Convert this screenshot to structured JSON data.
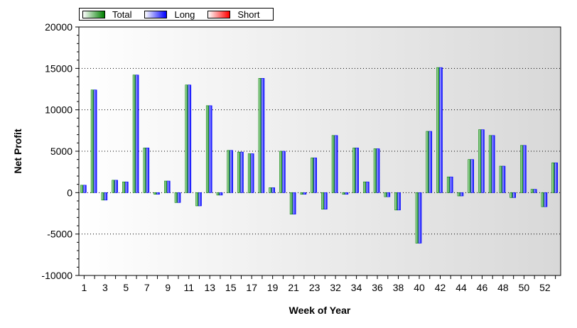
{
  "chart_data": {
    "type": "bar",
    "xlabel": "Week of Year",
    "ylabel": "Net Profit",
    "ylim": [
      -10000,
      20000
    ],
    "yticks": [
      -10000,
      -5000,
      0,
      5000,
      10000,
      15000,
      20000
    ],
    "xtick_labels": [
      "1",
      "3",
      "5",
      "7",
      "9",
      "11",
      "13",
      "15",
      "17",
      "19",
      "21",
      "23",
      "32",
      "34",
      "36",
      "38",
      "40",
      "42",
      "44",
      "46",
      "48",
      "50",
      "52"
    ],
    "legend": {
      "position": "top-left",
      "entries": [
        "Total",
        "Long",
        "Short"
      ]
    },
    "grid": "horizontal-dotted",
    "categories": [
      "1",
      "2",
      "3",
      "4",
      "5",
      "6",
      "7",
      "8",
      "9",
      "10",
      "11",
      "12",
      "13",
      "14",
      "15",
      "16",
      "17",
      "18",
      "19",
      "20",
      "21",
      "22",
      "23",
      "24",
      "32",
      "33",
      "34",
      "35",
      "36",
      "37",
      "38",
      "39",
      "40",
      "41",
      "42",
      "43",
      "44",
      "45",
      "46",
      "47",
      "48",
      "49",
      "50",
      "51",
      "52",
      "53"
    ],
    "series": [
      {
        "name": "Total",
        "color": "#008000",
        "values": [
          900,
          12400,
          -900,
          1500,
          1300,
          14200,
          5400,
          -200,
          1400,
          -1200,
          13000,
          -1600,
          10500,
          -300,
          5100,
          4900,
          4700,
          13800,
          600,
          5000,
          -2600,
          -200,
          4200,
          -2000,
          6900,
          -200,
          5400,
          1300,
          5300,
          -500,
          -2100,
          0,
          -6100,
          7400,
          15100,
          1900,
          -400,
          4000,
          7600,
          6900,
          3200,
          -600,
          5700,
          400,
          -1700,
          3600
        ]
      },
      {
        "name": "Long",
        "color": "#0000ff",
        "values": [
          900,
          12400,
          -900,
          1500,
          1300,
          14200,
          5400,
          -200,
          1400,
          -1200,
          13000,
          -1600,
          10500,
          -300,
          5100,
          4900,
          4700,
          13800,
          600,
          5000,
          -2600,
          -200,
          4200,
          -2000,
          6900,
          -200,
          5400,
          1300,
          5300,
          -500,
          -2100,
          0,
          -6100,
          7400,
          15100,
          1900,
          -400,
          4000,
          7600,
          6900,
          3200,
          -600,
          5700,
          400,
          -1700,
          3600
        ]
      },
      {
        "name": "Short",
        "color": "#ff0000",
        "values": [
          0,
          0,
          0,
          0,
          0,
          0,
          0,
          0,
          0,
          0,
          0,
          0,
          0,
          0,
          0,
          0,
          0,
          0,
          0,
          0,
          0,
          0,
          0,
          0,
          0,
          0,
          0,
          0,
          0,
          0,
          0,
          0,
          0,
          0,
          0,
          0,
          0,
          0,
          0,
          0,
          0,
          0,
          0,
          0,
          0,
          0
        ]
      }
    ]
  }
}
